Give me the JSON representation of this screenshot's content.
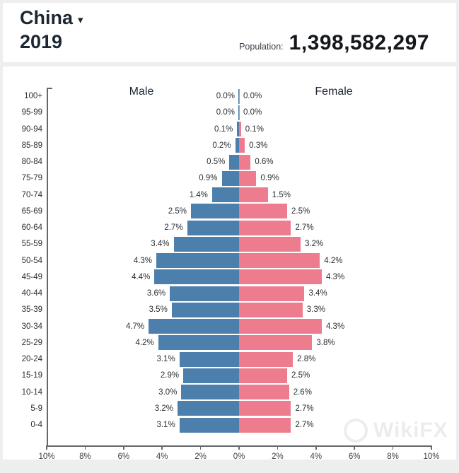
{
  "header": {
    "country": "China",
    "year": "2019",
    "population_label": "Population:",
    "population_value": "1,398,582,297",
    "dropdown_icon": "▾"
  },
  "chart_data": {
    "type": "bar",
    "variant": "population-pyramid",
    "title": "China 2019 population pyramid",
    "left_series_label": "Male",
    "right_series_label": "Female",
    "age_groups": [
      "100+",
      "95-99",
      "90-94",
      "85-89",
      "80-84",
      "75-79",
      "70-74",
      "65-69",
      "60-64",
      "55-59",
      "50-54",
      "45-49",
      "40-44",
      "35-39",
      "30-34",
      "25-29",
      "20-24",
      "15-19",
      "10-14",
      "5-9",
      "0-4"
    ],
    "series": [
      {
        "name": "Male",
        "side": "left",
        "color": "#4d7fad",
        "values": [
          0.0,
          0.0,
          0.1,
          0.2,
          0.5,
          0.9,
          1.4,
          2.5,
          2.7,
          3.4,
          4.3,
          4.4,
          3.6,
          3.5,
          4.7,
          4.2,
          3.1,
          2.9,
          3.0,
          3.2,
          3.1
        ]
      },
      {
        "name": "Female",
        "side": "right",
        "color": "#ed7c8f",
        "values": [
          0.0,
          0.0,
          0.1,
          0.3,
          0.6,
          0.9,
          1.5,
          2.5,
          2.7,
          3.2,
          4.2,
          4.3,
          3.4,
          3.3,
          4.3,
          3.8,
          2.8,
          2.5,
          2.6,
          2.7,
          2.7
        ]
      }
    ],
    "value_label_format": "percent-1dp",
    "x_ticks": [
      "10%",
      "8%",
      "6%",
      "4%",
      "2%",
      "0%",
      "2%",
      "4%",
      "6%",
      "8%",
      "10%"
    ],
    "x_max_percent": 10,
    "axis_color": "#64686d",
    "grid": false,
    "legend_position": "inside-top"
  },
  "watermark": {
    "text": "WikiFX"
  }
}
